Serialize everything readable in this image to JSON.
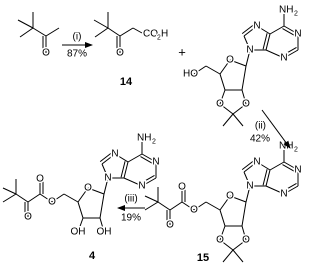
{
  "steps": [
    {
      "reagent": "(i)",
      "yield": "87%"
    },
    {
      "reagent": "(ii)",
      "yield": "42%"
    },
    {
      "reagent": "(iii)",
      "yield": "19%"
    }
  ],
  "plus": "+",
  "molecules": [
    {
      "atoms": [
        "O"
      ]
    },
    {
      "atoms": [
        "O",
        "CO",
        "2",
        "H"
      ],
      "label": "14"
    },
    {
      "atoms": [
        "N",
        "N",
        "N",
        "N",
        "NH",
        "2",
        "O",
        "O",
        "O",
        "HO"
      ]
    },
    {
      "atoms": [
        "N",
        "N",
        "N",
        "N",
        "NH",
        "2",
        "O",
        "O",
        "O",
        "O",
        "O",
        "O"
      ],
      "label": "15"
    },
    {
      "atoms": [
        "N",
        "N",
        "N",
        "N",
        "NH",
        "2",
        "O",
        "OH",
        "OH",
        "O",
        "O",
        "O"
      ],
      "label": "4"
    }
  ]
}
